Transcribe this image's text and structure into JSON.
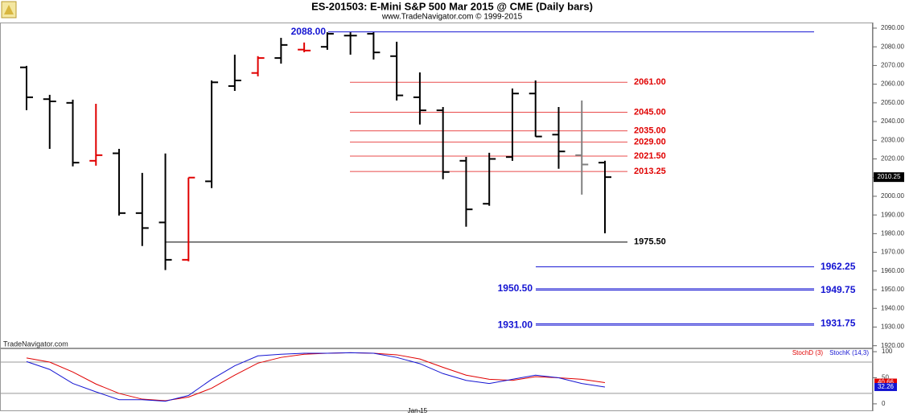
{
  "chart_data": [
    {
      "type": "ohlc",
      "title": "ES-201503:  E-Mini S&P 500 Mar 2015 @ CME  (Daily bars)",
      "subtitle": "www.TradeNavigator.com © 1999-2015",
      "watermark": "TradeNavigator.com",
      "ylim": [
        1919,
        2093
      ],
      "yticks": [
        {
          "value": 1920,
          "label": "1920.00"
        },
        {
          "value": 1930,
          "label": "1930.00"
        },
        {
          "value": 1940,
          "label": "1940.00"
        },
        {
          "value": 1950,
          "label": "1950.00"
        },
        {
          "value": 1960,
          "label": "1960.00"
        },
        {
          "value": 1970,
          "label": "1970.00"
        },
        {
          "value": 1980,
          "label": "1980.00"
        },
        {
          "value": 1990,
          "label": "1990.00"
        },
        {
          "value": 2000,
          "label": "2000.00"
        },
        {
          "value": 2010,
          "label": "2010.00"
        },
        {
          "value": 2020,
          "label": "2020.00"
        },
        {
          "value": 2030,
          "label": "2030.00"
        },
        {
          "value": 2040,
          "label": "2040.00"
        },
        {
          "value": 2050,
          "label": "2050.00"
        },
        {
          "value": 2060,
          "label": "2060.00"
        },
        {
          "value": 2070,
          "label": "2070.00"
        },
        {
          "value": 2080,
          "label": "2080.00"
        },
        {
          "value": 2090,
          "label": "2090.00"
        }
      ],
      "open": [
        2069,
        2052,
        2050,
        2019,
        2023,
        1991,
        1986,
        1966,
        2008,
        2059,
        2066,
        2074,
        2078.5,
        2080,
        2086,
        2087,
        2075,
        2053,
        2046,
        2019,
        1996,
        2021,
        2055,
        2033,
        2022,
        2018
      ],
      "high": [
        2069.8,
        2054.3,
        2051.7,
        2049.5,
        2025.4,
        2012.5,
        2022.9,
        2010,
        2062,
        2075.8,
        2075,
        2084.8,
        2082.3,
        2087.8,
        2087.8,
        2087.8,
        2082.7,
        2066.3,
        2047.8,
        2021.1,
        2023.3,
        2057.7,
        2062,
        2047.8,
        2051.3,
        2019
      ],
      "low": [
        2046.1,
        2025.4,
        2016,
        2016.4,
        1989.7,
        1973.4,
        1960.5,
        1965.2,
        2004.4,
        2056.4,
        2064.2,
        2071,
        2077.1,
        2078.4,
        2075.8,
        2073.2,
        2051.3,
        2038.4,
        2009.1,
        1983.7,
        1994.9,
        2019,
        2031.9,
        2014.7,
        2000.9,
        1980.2
      ],
      "close": [
        2053,
        2050.8,
        2018,
        2022,
        1991,
        1983,
        1966,
        2010,
        2061,
        2062,
        2074,
        2081,
        2078,
        2087,
        2086,
        2077,
        2054,
        2046,
        2013,
        1993,
        2020,
        2055,
        2032,
        2024,
        2017,
        2010.25
      ],
      "colors": [
        "#000000",
        "#000000",
        "#000000",
        "#e00000",
        "#000000",
        "#000000",
        "#000000",
        "#e00000",
        "#000000",
        "#000000",
        "#e00000",
        "#000000",
        "#e00000",
        "#000000",
        "#000000",
        "#000000",
        "#000000",
        "#000000",
        "#000000",
        "#000000",
        "#000000",
        "#000000",
        "#000000",
        "#000000",
        "#808080",
        "#000000"
      ],
      "levels": [
        {
          "value": 2088,
          "label": "2088.00",
          "color": "#1414d2"
        },
        {
          "value": 2061,
          "label": "2061.00",
          "color": "#e00000"
        },
        {
          "value": 2045,
          "label": "2045.00",
          "color": "#e00000"
        },
        {
          "value": 2035,
          "label": "2035.00",
          "color": "#e00000"
        },
        {
          "value": 2029,
          "label": "2029.00",
          "color": "#e00000"
        },
        {
          "value": 2021.5,
          "label": "2021.50",
          "color": "#e00000"
        },
        {
          "value": 2013.25,
          "label": "2013.25",
          "color": "#e00000"
        },
        {
          "value": 1975.5,
          "label": "1975.50",
          "color": "#000000"
        },
        {
          "value": 1962.25,
          "label": "1962.25",
          "color": "#1414d2"
        },
        {
          "value": 1950.5,
          "label": "1950.50",
          "color": "#1414d2"
        },
        {
          "value": 1949.75,
          "label": "1949.75",
          "color": "#1414d2"
        },
        {
          "value": 1931,
          "label": "1931.00",
          "color": "#1414d2"
        },
        {
          "value": 1931.75,
          "label": "1931.75",
          "color": "#1414d2"
        }
      ]
    },
    {
      "type": "line",
      "categories": [
        null,
        null,
        null,
        null,
        null,
        null,
        null,
        null,
        null,
        null,
        null,
        null,
        null,
        null,
        null,
        null,
        null,
        "Jan-15",
        null,
        null,
        null,
        null,
        null,
        null,
        null,
        null
      ],
      "ylim": [
        -12.5,
        106.25
      ],
      "yticks": [
        0,
        50,
        100
      ],
      "reference_lines": [
        20,
        80
      ],
      "series": [
        {
          "name": "StochD (3)",
          "color": "#e00000",
          "values": [
            88,
            80,
            61,
            38,
            20,
            9,
            6,
            13,
            30,
            55,
            78,
            89,
            95,
            97,
            98,
            97,
            94,
            86,
            70,
            55,
            47,
            45,
            52,
            50,
            47,
            40.66
          ]
        },
        {
          "name": "StochK (14,3)",
          "color": "#1414d2",
          "values": [
            81,
            66,
            39,
            23,
            8,
            8,
            5,
            16,
            47,
            73,
            92,
            95,
            97,
            97,
            98,
            97,
            89,
            77,
            58,
            45,
            39,
            47,
            55,
            50,
            39,
            32.26
          ]
        }
      ]
    }
  ]
}
